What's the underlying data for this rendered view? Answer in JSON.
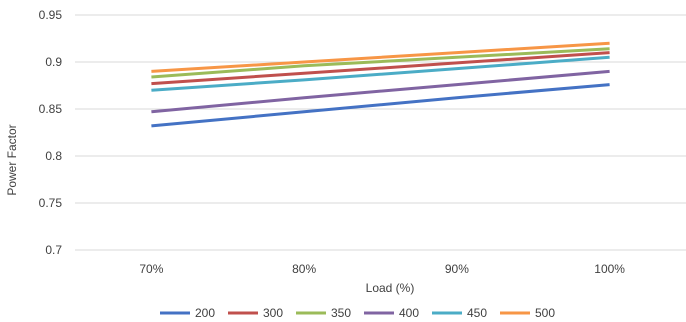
{
  "chart_data": {
    "type": "line",
    "title": "",
    "xlabel": "Load (%)",
    "ylabel": "Power Factor",
    "categories": [
      "70%",
      "80%",
      "90%",
      "100%"
    ],
    "ylim": [
      0.7,
      0.95
    ],
    "yticks": [
      0.7,
      0.75,
      0.8,
      0.85,
      0.9,
      0.95
    ],
    "ytick_labels": [
      "0.7",
      "0.75",
      "0.8",
      "0.85",
      "0.9",
      "0.95"
    ],
    "grid": "horizontal",
    "legend_position": "bottom",
    "series": [
      {
        "name": "200",
        "color": "#4472C4",
        "values": [
          0.832,
          0.847,
          0.862,
          0.876
        ]
      },
      {
        "name": "300",
        "color": "#C0504D",
        "values": [
          0.877,
          0.888,
          0.899,
          0.91
        ]
      },
      {
        "name": "350",
        "color": "#9BBB59",
        "values": [
          0.884,
          0.896,
          0.905,
          0.914
        ]
      },
      {
        "name": "400",
        "color": "#8064A2",
        "values": [
          0.847,
          0.862,
          0.876,
          0.89
        ]
      },
      {
        "name": "450",
        "color": "#4BACC6",
        "values": [
          0.87,
          0.881,
          0.893,
          0.905
        ]
      },
      {
        "name": "500",
        "color": "#F79646",
        "values": [
          0.89,
          0.9,
          0.91,
          0.92
        ]
      }
    ]
  }
}
